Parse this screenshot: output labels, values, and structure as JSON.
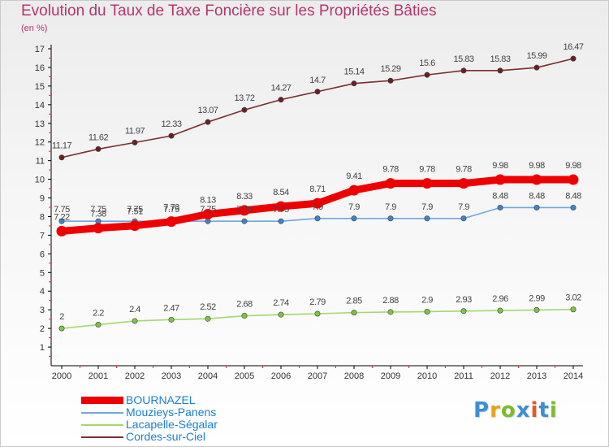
{
  "title": "Evolution du Taux de Taxe Foncière sur les Propriétés Bâties",
  "unit": "(en %)",
  "logo": {
    "letters": [
      {
        "ch": "P",
        "color": "#3b8fd4"
      },
      {
        "ch": "r",
        "color": "#e8a317"
      },
      {
        "ch": "o",
        "color": "#7cbb2c"
      },
      {
        "ch": "x",
        "color": "#3b8fd4"
      },
      {
        "ch": "i",
        "color": "#e85a1d"
      },
      {
        "ch": "t",
        "color": "#3b8fd4"
      },
      {
        "ch": "i",
        "color": "#7cbb2c"
      }
    ]
  },
  "chart_data": {
    "type": "line",
    "title": "Evolution du Taux de Taxe Foncière sur les Propriétés Bâties",
    "ylabel": "(en %)",
    "xlabel": "",
    "x": [
      "2000",
      "2001",
      "2002",
      "2003",
      "2004",
      "2005",
      "2006",
      "2007",
      "2008",
      "2009",
      "2010",
      "2011",
      "2012",
      "2013",
      "2014"
    ],
    "ylim": [
      0,
      17
    ],
    "yticks": [
      1,
      2,
      3,
      4,
      5,
      6,
      7,
      8,
      9,
      10,
      11,
      12,
      13,
      14,
      15,
      16,
      17
    ],
    "grid": false,
    "legend_position": "bottom-left",
    "series": [
      {
        "name": "BOURNAZEL",
        "color": "#ee0000",
        "marker_color": "#ee0000",
        "thick": true,
        "values": [
          7.22,
          7.38,
          7.51,
          7.73,
          8.13,
          8.33,
          8.54,
          8.71,
          9.41,
          9.78,
          9.78,
          9.78,
          9.98,
          9.98,
          9.98
        ],
        "labels": [
          "7.22",
          "7.38",
          "7.51",
          "7.73",
          "8.13",
          "8.33",
          "8.54",
          "8.71",
          "9.41",
          "9.78",
          "9.78",
          "9.78",
          "9.98",
          "9.98",
          "9.98"
        ]
      },
      {
        "name": "Mouzieys-Panens",
        "color": "#6fa8dc",
        "marker_color": "#3d85c6",
        "values": [
          7.75,
          7.75,
          7.75,
          7.75,
          7.75,
          7.75,
          7.75,
          7.9,
          7.9,
          7.9,
          7.9,
          7.9,
          8.48,
          8.48,
          8.48
        ],
        "labels": [
          "7.75",
          "7.75",
          "7.75",
          "7.75",
          "7.75",
          "7.75",
          "7.75",
          "7.9",
          "7.9",
          "7.9",
          "7.9",
          "7.9",
          "8.48",
          "8.48",
          "8.48"
        ]
      },
      {
        "name": "Lacapelle-Ségalar",
        "color": "#a4d86e",
        "marker_color": "#7cc443",
        "values": [
          2,
          2.2,
          2.4,
          2.47,
          2.52,
          2.68,
          2.74,
          2.79,
          2.85,
          2.88,
          2.9,
          2.93,
          2.96,
          2.99,
          3.02
        ],
        "labels": [
          "2",
          "2.2",
          "2.4",
          "2.47",
          "2.52",
          "2.68",
          "2.74",
          "2.79",
          "2.85",
          "2.88",
          "2.9",
          "2.93",
          "2.96",
          "2.99",
          "3.02"
        ]
      },
      {
        "name": "Cordes-sur-Ciel",
        "color": "#7a2d2d",
        "marker_color": "#6b1f1f",
        "values": [
          11.17,
          11.62,
          11.97,
          12.33,
          13.07,
          13.72,
          14.27,
          14.7,
          15.14,
          15.29,
          15.6,
          15.83,
          15.83,
          15.99,
          16.47
        ],
        "labels": [
          "11.17",
          "11.62",
          "11.97",
          "12.33",
          "13.07",
          "13.72",
          "14.27",
          "14.7",
          "15.14",
          "15.29",
          "15.6",
          "15.83",
          "15.83",
          "15.99",
          "16.47"
        ]
      }
    ]
  }
}
